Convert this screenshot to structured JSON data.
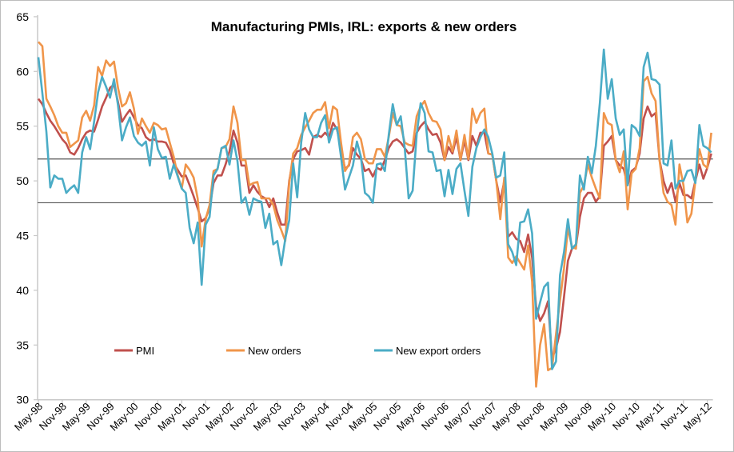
{
  "chart_data": {
    "type": "line",
    "title": "Manufacturing PMIs, IRL: exports & new orders",
    "xlabel": "",
    "ylabel": "",
    "ylim": [
      30,
      65
    ],
    "yticks": [
      30,
      35,
      40,
      45,
      50,
      55,
      60,
      65
    ],
    "x_start": "May-98",
    "x_frequency": "monthly",
    "xtick_labels": [
      "May-98",
      "Nov-98",
      "May-99",
      "Nov-99",
      "May-00",
      "Nov-00",
      "May-01",
      "Nov-01",
      "May-02",
      "Nov-02",
      "May-03",
      "Nov-03",
      "May-04",
      "Nov-04",
      "May-05",
      "Nov-05",
      "May-06",
      "Nov-06",
      "May-07",
      "Nov-07",
      "May-08",
      "Nov-08",
      "May-09",
      "Nov-09",
      "May-10",
      "Nov-10",
      "May-11",
      "Nov-11",
      "May-12"
    ],
    "reference_lines": [
      52,
      48
    ],
    "grid": false,
    "legend_position": "bottom-left inside",
    "series": [
      {
        "name": "PMI",
        "color": "#c0504d",
        "values": [
          57.5,
          57.0,
          56.2,
          55.5,
          55.0,
          54.4,
          53.8,
          53.4,
          52.6,
          52.4,
          53.0,
          53.8,
          54.4,
          54.6,
          54.5,
          55.6,
          56.8,
          57.6,
          58.5,
          58.8,
          57.2,
          55.4,
          56.0,
          56.5,
          55.8,
          55.1,
          54.8,
          54.0,
          53.7,
          53.8,
          53.6,
          53.6,
          53.5,
          52.8,
          51.6,
          51.0,
          50.4,
          50.5,
          49.6,
          48.6,
          47.5,
          46.3,
          46.6,
          47.5,
          49.8,
          50.5,
          50.5,
          51.5,
          52.7,
          54.6,
          53.5,
          51.4,
          51.4,
          48.9,
          49.6,
          49.0,
          48.6,
          48.4,
          47.6,
          48.4,
          47.1,
          46.0,
          46.0,
          50.0,
          52.0,
          52.7,
          52.8,
          53.0,
          52.4,
          54.0,
          54.2,
          54.0,
          54.4,
          54.0,
          55.3,
          54.7,
          53.0,
          51.1,
          51.4,
          53.0,
          52.4,
          52.0,
          50.9,
          51.1,
          50.4,
          51.2,
          51.0,
          51.9,
          53.0,
          53.6,
          53.8,
          53.5,
          53.0,
          52.5,
          52.7,
          54.4,
          55.0,
          55.4,
          54.7,
          54.2,
          54.3,
          53.5,
          51.9,
          53.1,
          52.5,
          54.0,
          51.9,
          53.7,
          51.9,
          54.1,
          53.2,
          54.4,
          54.4,
          52.5,
          52.4,
          50.0,
          48.1,
          50.0,
          44.9,
          45.3,
          44.7,
          44.5,
          43.5,
          45.1,
          43.0,
          38.5,
          37.2,
          37.9,
          39.0,
          33.8,
          34.7,
          36.2,
          39.4,
          42.7,
          43.8,
          44.0,
          46.7,
          48.4,
          48.9,
          48.9,
          48.1,
          48.6,
          53.2,
          53.6,
          54.1,
          51.9,
          51.4,
          51.1,
          49.6,
          50.9,
          51.2,
          52.5,
          55.7,
          56.8,
          55.9,
          56.2,
          51.9,
          50.0,
          48.9,
          49.8,
          48.1,
          49.8,
          48.7,
          48.7,
          48.4,
          50.0,
          51.5,
          50.2,
          51.2,
          52.5
        ]
      },
      {
        "name": "New orders",
        "color": "#f0954a",
        "values": [
          62.7,
          62.3,
          57.5,
          56.8,
          56.0,
          55.0,
          54.4,
          54.4,
          53.1,
          53.4,
          53.7,
          55.8,
          56.4,
          55.5,
          56.9,
          60.4,
          59.6,
          61.0,
          60.5,
          60.9,
          58.5,
          56.8,
          57.1,
          58.1,
          56.6,
          54.3,
          55.7,
          55.0,
          54.4,
          55.3,
          55.1,
          54.7,
          54.8,
          53.5,
          52.2,
          50.5,
          49.3,
          51.5,
          51.0,
          50.3,
          48.4,
          44.0,
          46.5,
          47.8,
          50.9,
          51.1,
          53.0,
          53.1,
          53.8,
          56.8,
          55.3,
          51.9,
          51.9,
          49.6,
          49.8,
          49.9,
          48.4,
          48.4,
          48.4,
          47.8,
          46.4,
          45.5,
          44.5,
          49.8,
          52.5,
          53.0,
          54.2,
          54.9,
          55.5,
          56.2,
          56.5,
          56.5,
          57.2,
          54.8,
          56.8,
          56.5,
          53.5,
          50.9,
          51.5,
          54.0,
          54.4,
          53.8,
          52.0,
          51.6,
          51.6,
          52.9,
          52.9,
          52.2,
          54.0,
          56.2,
          55.1,
          55.0,
          53.5,
          53.3,
          53.2,
          55.9,
          56.8,
          57.3,
          56.2,
          55.5,
          55.4,
          54.7,
          51.9,
          54.1,
          52.7,
          54.6,
          51.9,
          54.2,
          52.0,
          56.6,
          55.3,
          56.2,
          56.6,
          52.5,
          52.4,
          50.0,
          46.5,
          50.3,
          43.0,
          42.5,
          43.1,
          42.5,
          41.9,
          44.1,
          40.8,
          31.2,
          35.0,
          36.9,
          32.7,
          32.9,
          36.0,
          39.1,
          42.0,
          45.7,
          44.0,
          43.8,
          48.9,
          49.6,
          51.5,
          50.3,
          49.3,
          48.4,
          56.2,
          55.3,
          55.1,
          51.9,
          50.8,
          52.7,
          47.4,
          50.7,
          51.1,
          53.0,
          59.1,
          59.5,
          58.0,
          57.3,
          51.9,
          48.9,
          48.1,
          47.8,
          46.0,
          51.5,
          49.6,
          46.2,
          47.0,
          50.0,
          52.9,
          51.5,
          51.2,
          54.4
        ]
      },
      {
        "name": "New export orders",
        "color": "#4bacc6",
        "values": [
          61.3,
          58.0,
          54.5,
          49.4,
          50.5,
          50.2,
          50.2,
          48.9,
          49.3,
          49.6,
          48.9,
          52.6,
          54.0,
          52.9,
          55.4,
          58.1,
          59.5,
          58.6,
          57.6,
          59.3,
          56.9,
          53.7,
          54.9,
          55.8,
          54.1,
          53.5,
          53.2,
          53.6,
          51.4,
          54.9,
          52.9,
          52.1,
          52.2,
          50.2,
          51.5,
          50.4,
          49.3,
          48.9,
          45.7,
          44.3,
          46.2,
          40.5,
          46.0,
          46.7,
          50.5,
          51.1,
          53.0,
          53.2,
          51.5,
          53.7,
          51.8,
          48.0,
          48.5,
          46.9,
          48.4,
          48.2,
          48.1,
          45.7,
          47.0,
          44.2,
          44.5,
          42.3,
          44.7,
          46.4,
          51.6,
          48.5,
          53.5,
          56.2,
          54.7,
          54.0,
          54.0,
          55.3,
          56.0,
          53.5,
          54.7,
          54.9,
          52.2,
          49.2,
          50.3,
          51.4,
          53.6,
          52.2,
          48.9,
          48.6,
          48.0,
          51.5,
          51.6,
          50.9,
          54.2,
          57.0,
          55.1,
          55.9,
          53.0,
          48.4,
          49.1,
          54.2,
          57.1,
          56.2,
          52.7,
          52.6,
          50.9,
          51.0,
          48.6,
          51.0,
          48.8,
          51.1,
          51.6,
          49.1,
          46.8,
          51.3,
          53.0,
          54.0,
          54.7,
          54.0,
          52.5,
          50.3,
          50.5,
          52.6,
          44.2,
          43.5,
          42.3,
          46.2,
          46.3,
          47.4,
          45.2,
          37.4,
          38.9,
          40.3,
          40.7,
          32.8,
          33.5,
          41.4,
          43.5,
          46.5,
          43.8,
          44.2,
          50.5,
          49.2,
          52.2,
          50.7,
          53.2,
          57.1,
          62.0,
          57.5,
          59.3,
          55.7,
          54.2,
          54.7,
          49.6,
          55.1,
          54.8,
          54.1,
          60.4,
          61.7,
          59.3,
          59.2,
          58.8,
          51.6,
          51.4,
          53.7,
          49.3,
          50.0,
          50.0,
          50.9,
          51.0,
          49.8,
          55.1,
          53.2,
          53.0,
          52.6
        ]
      }
    ]
  }
}
